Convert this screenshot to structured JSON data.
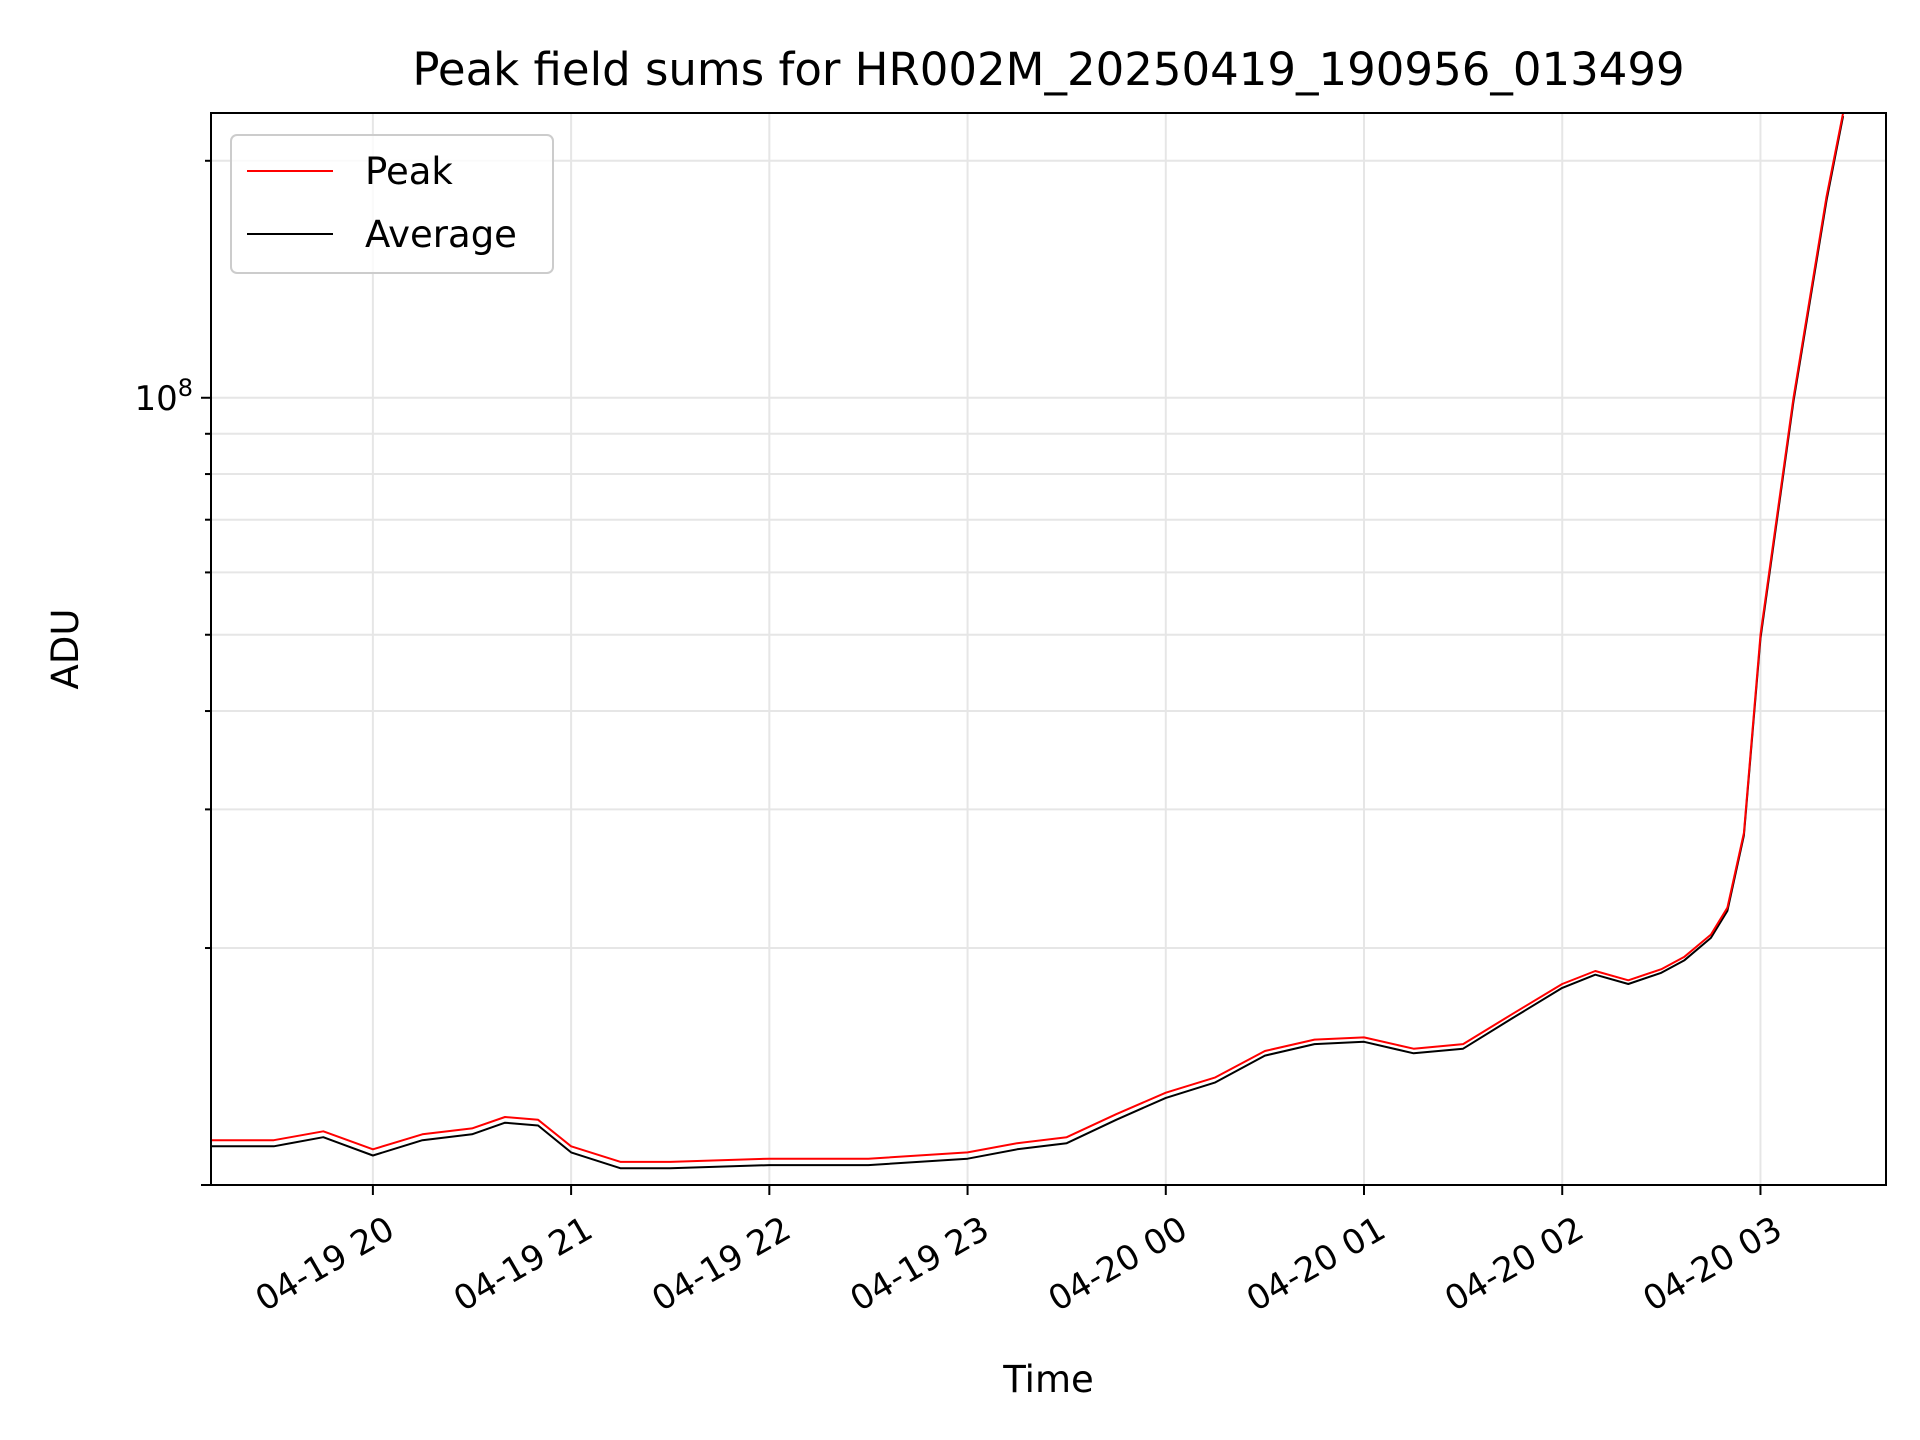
{
  "chart_data": {
    "type": "line",
    "title": "Peak field sums for HR002M_20250419_190956_013499",
    "xlabel": "Time",
    "ylabel": "ADU",
    "y_scale": "log",
    "ylim": [
      10000000,
      230000000
    ],
    "xlim": [
      "2025-04-19 19:11",
      "2025-04-20 03:38"
    ],
    "x_ticks": [
      "04-19 20",
      "04-19 21",
      "04-19 22",
      "04-19 23",
      "04-20 00",
      "04-20 01",
      "04-20 02",
      "04-20 03"
    ],
    "x_tick_values": [
      "2025-04-19 20:00",
      "2025-04-19 21:00",
      "2025-04-19 22:00",
      "2025-04-19 23:00",
      "2025-04-20 00:00",
      "2025-04-20 01:00",
      "2025-04-20 02:00",
      "2025-04-20 03:00"
    ],
    "y_ticks": [
      "10^8"
    ],
    "y_tick_values": [
      100000000
    ],
    "grid": true,
    "legend_position": "top-left",
    "series": [
      {
        "name": "Peak",
        "color": "#ff0000",
        "x": [
          "2025-04-19 19:11",
          "2025-04-19 19:30",
          "2025-04-19 19:45",
          "2025-04-19 20:00",
          "2025-04-19 20:15",
          "2025-04-19 20:30",
          "2025-04-19 20:40",
          "2025-04-19 20:50",
          "2025-04-19 21:00",
          "2025-04-19 21:15",
          "2025-04-19 21:30",
          "2025-04-19 22:00",
          "2025-04-19 22:30",
          "2025-04-19 23:00",
          "2025-04-19 23:15",
          "2025-04-19 23:30",
          "2025-04-19 23:45",
          "2025-04-20 00:00",
          "2025-04-20 00:15",
          "2025-04-20 00:30",
          "2025-04-20 00:45",
          "2025-04-20 01:00",
          "2025-04-20 01:15",
          "2025-04-20 01:30",
          "2025-04-20 01:45",
          "2025-04-20 02:00",
          "2025-04-20 02:10",
          "2025-04-20 02:20",
          "2025-04-20 02:30",
          "2025-04-20 02:37",
          "2025-04-20 02:45",
          "2025-04-20 02:50",
          "2025-04-20 02:55",
          "2025-04-20 03:00",
          "2025-04-20 03:10",
          "2025-04-20 03:20",
          "2025-04-20 03:25"
        ],
        "y": [
          11400000,
          11400000,
          11700000,
          11100000,
          11600000,
          11800000,
          12200000,
          12100000,
          11200000,
          10700000,
          10700000,
          10800000,
          10800000,
          11000000,
          11300000,
          11500000,
          12300000,
          13100000,
          13700000,
          14800000,
          15300000,
          15400000,
          14900000,
          15100000,
          16500000,
          18000000,
          18700000,
          18200000,
          18800000,
          19500000,
          20800000,
          22500000,
          28000000,
          50000000,
          100000000,
          180000000,
          230000000
        ]
      },
      {
        "name": "Average",
        "color": "#000000",
        "x": [
          "2025-04-19 19:11",
          "2025-04-19 19:30",
          "2025-04-19 19:45",
          "2025-04-19 20:00",
          "2025-04-19 20:15",
          "2025-04-19 20:30",
          "2025-04-19 20:40",
          "2025-04-19 20:50",
          "2025-04-19 21:00",
          "2025-04-19 21:15",
          "2025-04-19 21:30",
          "2025-04-19 22:00",
          "2025-04-19 22:30",
          "2025-04-19 23:00",
          "2025-04-19 23:15",
          "2025-04-19 23:30",
          "2025-04-19 23:45",
          "2025-04-20 00:00",
          "2025-04-20 00:15",
          "2025-04-20 00:30",
          "2025-04-20 00:45",
          "2025-04-20 01:00",
          "2025-04-20 01:15",
          "2025-04-20 01:30",
          "2025-04-20 01:45",
          "2025-04-20 02:00",
          "2025-04-20 02:10",
          "2025-04-20 02:20",
          "2025-04-20 02:30",
          "2025-04-20 02:37",
          "2025-04-20 02:45",
          "2025-04-20 02:50",
          "2025-04-20 02:55",
          "2025-04-20 03:00",
          "2025-04-20 03:10",
          "2025-04-20 03:20",
          "2025-04-20 03:25"
        ],
        "y": [
          11200000,
          11200000,
          11500000,
          10900000,
          11400000,
          11600000,
          12000000,
          11900000,
          11000000,
          10500000,
          10500000,
          10600000,
          10600000,
          10800000,
          11100000,
          11300000,
          12100000,
          12900000,
          13500000,
          14600000,
          15100000,
          15200000,
          14700000,
          14900000,
          16300000,
          17800000,
          18500000,
          18000000,
          18600000,
          19300000,
          20600000,
          22300000,
          27800000,
          49500000,
          99000000,
          178000000,
          228000000
        ]
      }
    ]
  }
}
